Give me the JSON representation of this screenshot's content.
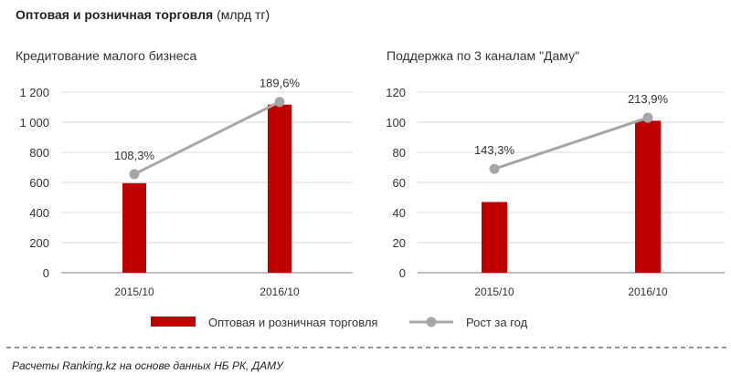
{
  "header": {
    "title": "Оптовая и розничная торговля",
    "unit": "(млрд тг)"
  },
  "legend": {
    "bar": "Оптовая и розничная торговля",
    "line": "Рост за год"
  },
  "footer": "Расчеты Ranking.kz на основе данных НБ РК, ДАМУ",
  "colors": {
    "bar": "#c00000",
    "line": "#a6a6a6",
    "grid": "#d9d9d9"
  },
  "chart_data": [
    {
      "type": "bar",
      "title": "Кредитование  малого бизнеса",
      "categories": [
        "2015/10",
        "2016/10"
      ],
      "series": [
        {
          "name": "Оптовая и розничная торговля",
          "type": "bar",
          "values": [
            595,
            1117
          ]
        },
        {
          "name": "Рост за год",
          "type": "line",
          "values": [
            655,
            1135
          ],
          "labels": [
            "108,3%",
            "189,6%"
          ]
        }
      ],
      "ylim": [
        0,
        1200
      ],
      "yticks": [
        0,
        200,
        400,
        600,
        800,
        1000,
        1200
      ],
      "ytick_labels": [
        "0",
        "200",
        "400",
        "600",
        "800",
        "1 000",
        "1 200"
      ],
      "grid": true
    },
    {
      "type": "bar",
      "title": "Поддержка  по 3 каналам \"Даму\"",
      "categories": [
        "2015/10",
        "2016/10"
      ],
      "series": [
        {
          "name": "Оптовая и розничная торговля",
          "type": "bar",
          "values": [
            47,
            101
          ]
        },
        {
          "name": "Рост за год",
          "type": "line",
          "values": [
            69,
            103
          ],
          "labels": [
            "143,3%",
            "213,9%"
          ]
        }
      ],
      "ylim": [
        0,
        120
      ],
      "yticks": [
        0,
        20,
        40,
        60,
        80,
        100,
        120
      ],
      "ytick_labels": [
        "0",
        "20",
        "40",
        "60",
        "80",
        "100",
        "120"
      ],
      "grid": true
    }
  ]
}
